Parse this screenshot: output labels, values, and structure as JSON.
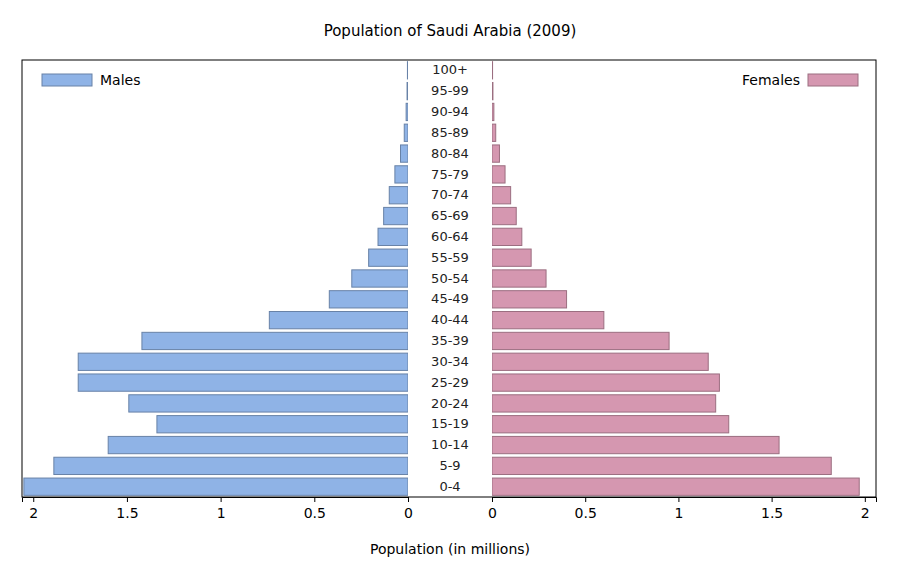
{
  "chart_data": {
    "type": "bar",
    "orientation": "horizontal",
    "title": "Population of Saudi Arabia (2009)",
    "x_label": "Population (in millions)",
    "categories": [
      "0-4",
      "5-9",
      "10-14",
      "15-19",
      "20-24",
      "25-29",
      "30-34",
      "35-39",
      "40-44",
      "45-49",
      "50-54",
      "55-59",
      "60-64",
      "65-69",
      "70-74",
      "75-79",
      "80-84",
      "85-89",
      "90-94",
      "95-99",
      "100+"
    ],
    "series": [
      {
        "name": "Males",
        "color": "#8fb3e6",
        "values": [
          2.05,
          1.89,
          1.6,
          1.34,
          1.49,
          1.76,
          1.76,
          1.42,
          0.74,
          0.42,
          0.3,
          0.21,
          0.16,
          0.13,
          0.1,
          0.07,
          0.04,
          0.02,
          0.01,
          0.005,
          0.003
        ]
      },
      {
        "name": "Females",
        "color": "#d597b0",
        "values": [
          1.97,
          1.82,
          1.54,
          1.27,
          1.2,
          1.22,
          1.16,
          0.95,
          0.6,
          0.4,
          0.29,
          0.21,
          0.16,
          0.13,
          0.1,
          0.07,
          0.04,
          0.02,
          0.01,
          0.005,
          0.003
        ]
      }
    ],
    "xlim": [
      0,
      2.06
    ],
    "xticks": [
      0,
      0.5,
      1,
      1.5,
      2
    ],
    "legend": "top",
    "grid": false
  }
}
